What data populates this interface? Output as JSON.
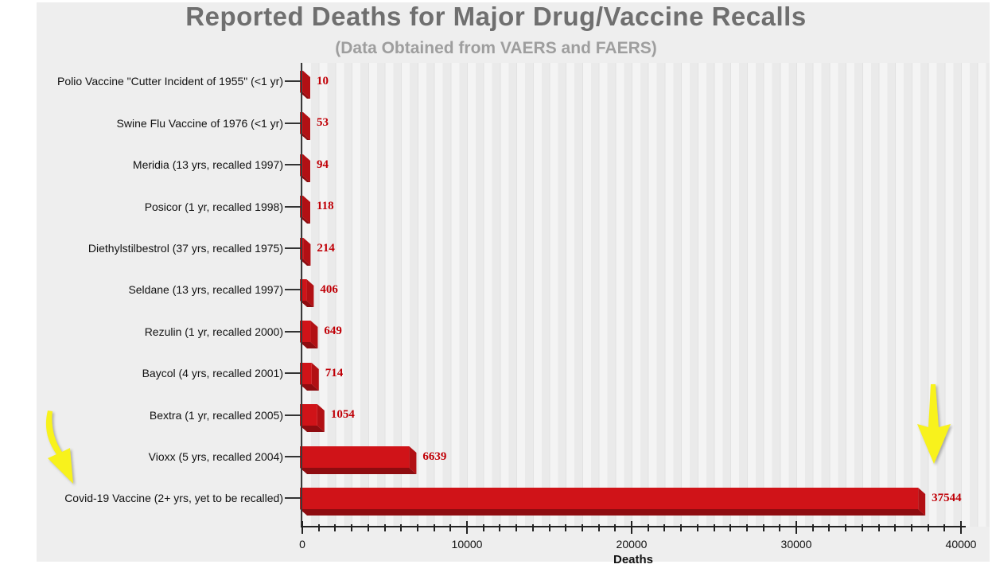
{
  "chart_data": {
    "type": "bar",
    "orientation": "horizontal",
    "title": "Reported Deaths for Major Drug/Vaccine Recalls",
    "subtitle": "(Data Obtained from VAERS and FAERS)",
    "xlabel": "Deaths",
    "xlim": [
      0,
      40000
    ],
    "x_major_ticks": [
      0,
      10000,
      20000,
      30000,
      40000
    ],
    "x_minor_tick_step": 1000,
    "grid": "vertical-minor-lines",
    "categories": [
      "Polio Vaccine \"Cutter Incident of 1955\" (<1 yr)",
      "Swine Flu Vaccine of 1976 (<1 yr)",
      "Meridia (13 yrs, recalled 1997)",
      "Posicor (1 yr, recalled 1998)",
      "Diethylstilbestrol (37 yrs, recalled 1975)",
      "Seldane (13 yrs, recalled 1997)",
      "Rezulin (1 yr, recalled 2000)",
      "Baycol (4 yrs, recalled 2001)",
      "Bextra (1 yr, recalled 2005)",
      "Vioxx (5 yrs, recalled 2004)",
      "Covid-19 Vaccine (2+ yrs, yet to be recalled)"
    ],
    "values": [
      10,
      53,
      94,
      118,
      214,
      406,
      649,
      714,
      1054,
      6639,
      37544
    ],
    "value_labels": [
      "10",
      "53",
      "94",
      "118",
      "214",
      "406",
      "649",
      "714",
      "1054",
      "6639",
      "37544"
    ],
    "colors": {
      "bar_front": "#d01318",
      "bar_side": "#b21014",
      "bar_bottom": "#8e0c10",
      "value_text": "#c00007",
      "title_text": "#6f6f6f",
      "subtitle_text": "#9e9e9e",
      "panel_background": "#eeeeee",
      "axis": "#222222",
      "annotation_yellow": "#f8f21c"
    },
    "annotations": [
      {
        "name": "left-arrow",
        "shape": "curved-arrow-pointing-down-right-at-covid-row-label"
      },
      {
        "name": "right-arrow",
        "shape": "straight-arrow-pointing-down-at-covid-bar-value"
      }
    ]
  }
}
